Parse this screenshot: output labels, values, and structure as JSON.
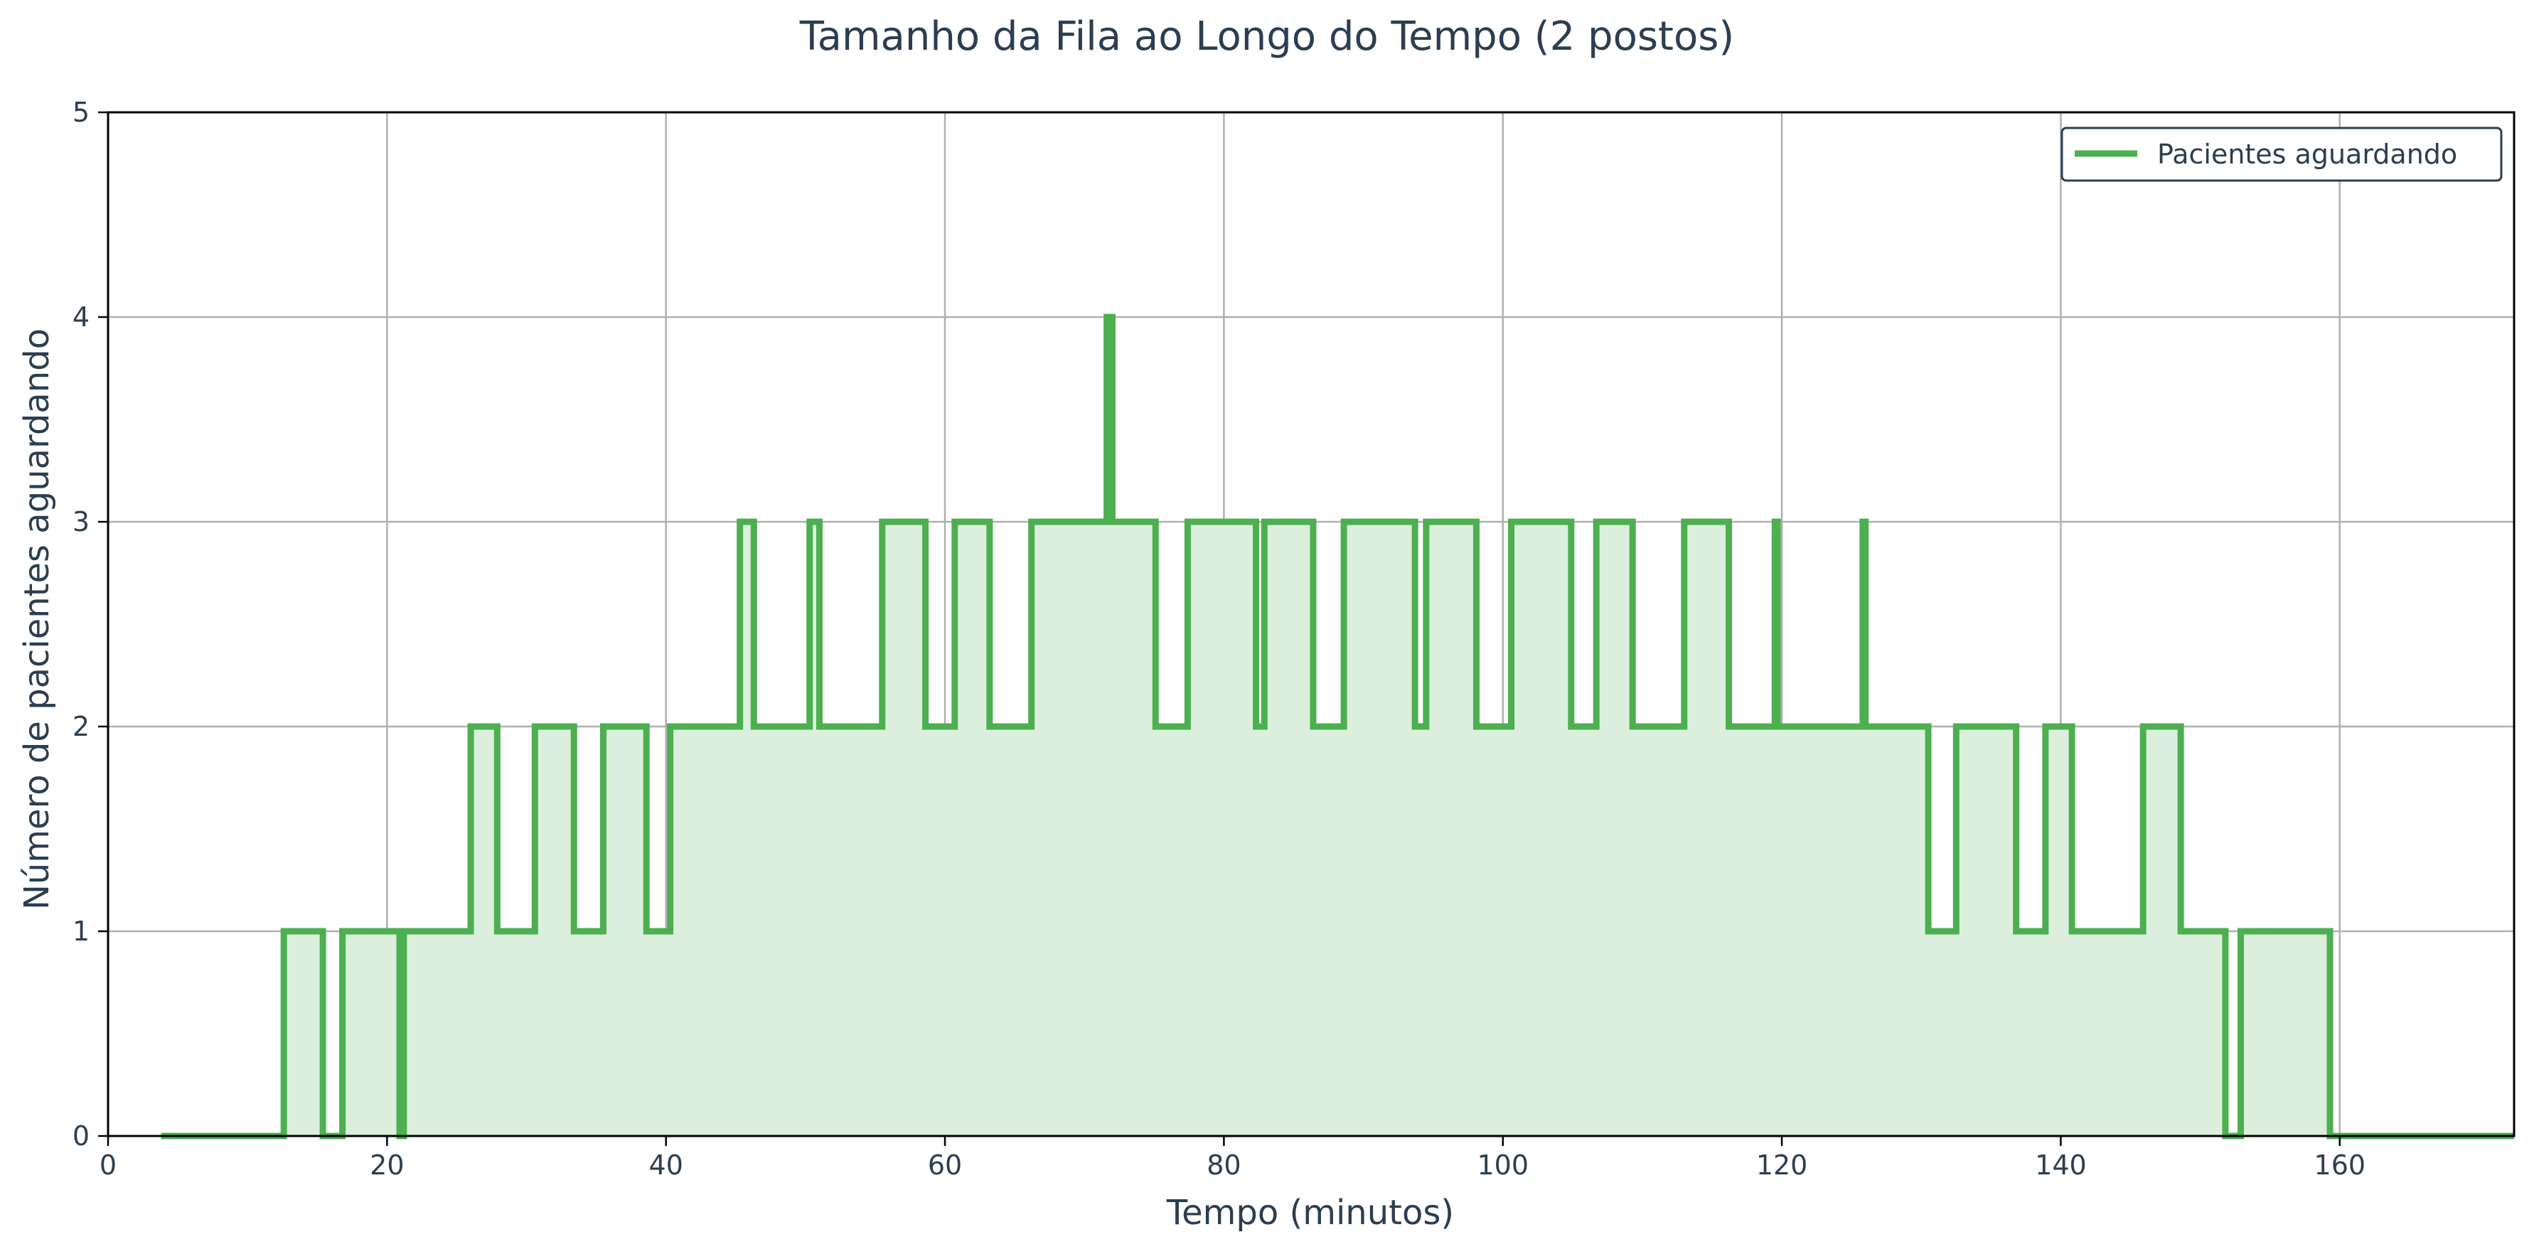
{
  "chart_data": {
    "type": "line",
    "step": "post",
    "title": "Tamanho da Fila ao Longo do Tempo (2 postos)",
    "xlabel": "Tempo (minutos)",
    "ylabel": "Número de pacientes aguardando",
    "xlim": [
      0,
      172.5
    ],
    "ylim": [
      0,
      5
    ],
    "xticks": [
      0,
      20,
      40,
      60,
      80,
      100,
      120,
      140,
      160
    ],
    "yticks": [
      0,
      1,
      2,
      3,
      4,
      5
    ],
    "grid": true,
    "legend": {
      "position": "top-right",
      "entries": [
        "Pacientes aguardando"
      ]
    },
    "colors": {
      "line": "#4caf50",
      "fill": "#dcefdc",
      "text": "#2c3e50",
      "frame": "#000000",
      "legend_border": "#2c3e50"
    },
    "series": [
      {
        "name": "Pacientes aguardando",
        "x": [
          3.8,
          12.6,
          15.4,
          16.8,
          20.9,
          21.2,
          21.5,
          26.0,
          27.9,
          30.6,
          33.4,
          35.5,
          38.6,
          40.3,
          45.3,
          46.3,
          50.3,
          51.0,
          55.5,
          58.6,
          60.7,
          63.2,
          66.2,
          71.6,
          72.0,
          75.1,
          77.4,
          82.3,
          82.9,
          86.4,
          88.6,
          93.7,
          94.5,
          98.1,
          100.6,
          104.9,
          106.7,
          109.3,
          113.0,
          116.2,
          119.5,
          119.7,
          125.8,
          126.0,
          130.5,
          132.5,
          136.8,
          138.9,
          140.8,
          145.9,
          148.6,
          151.8,
          152.9,
          159.3,
          172.5
        ],
        "y": [
          0,
          1,
          0,
          1,
          0,
          1,
          1,
          2,
          1,
          2,
          1,
          2,
          1,
          2,
          3,
          2,
          3,
          2,
          3,
          2,
          3,
          2,
          3,
          4,
          3,
          2,
          3,
          2,
          3,
          2,
          3,
          2,
          3,
          2,
          3,
          2,
          3,
          2,
          3,
          2,
          3,
          2,
          3,
          2,
          1,
          2,
          1,
          2,
          1,
          2,
          1,
          0,
          1,
          0,
          0
        ]
      }
    ]
  }
}
